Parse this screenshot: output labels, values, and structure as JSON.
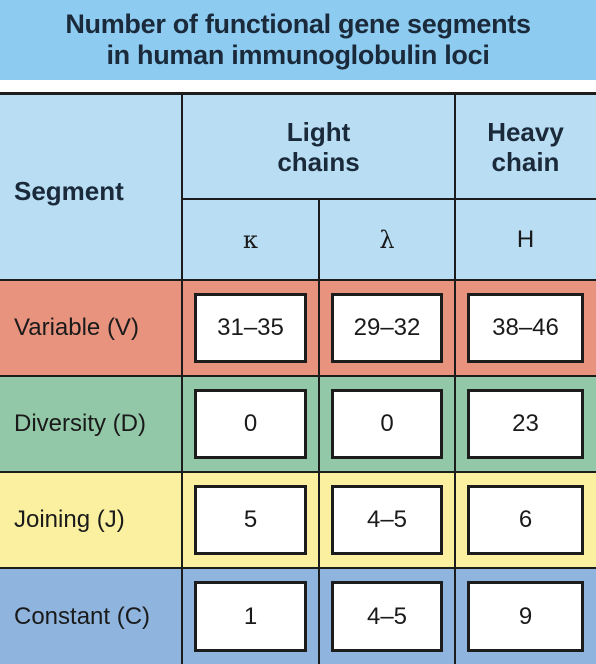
{
  "title": {
    "line1": "Number of functional gene segments",
    "line2": "in human immunoglobulin loci"
  },
  "header": {
    "segment": "Segment",
    "light_chains": [
      "Light",
      "chains"
    ],
    "heavy_chain": [
      "Heavy",
      "chain"
    ],
    "subcolumns": [
      "κ",
      "λ",
      "H"
    ]
  },
  "rows": [
    {
      "label": "Variable (V)",
      "values": [
        "31–35",
        "29–32",
        "38–46"
      ],
      "color": "#e8937e"
    },
    {
      "label": "Diversity (D)",
      "values": [
        "0",
        "0",
        "23"
      ],
      "color": "#92c7a7"
    },
    {
      "label": "Joining (J)",
      "values": [
        "5",
        "4–5",
        "6"
      ],
      "color": "#fbf0a0"
    },
    {
      "label": "Constant (C)",
      "values": [
        "1",
        "4–5",
        "9"
      ],
      "color": "#8fb4de"
    }
  ],
  "colors": {
    "title_bg": "#8dcbf0",
    "header_bg": "#b9def4",
    "border": "#1c1c1c"
  }
}
